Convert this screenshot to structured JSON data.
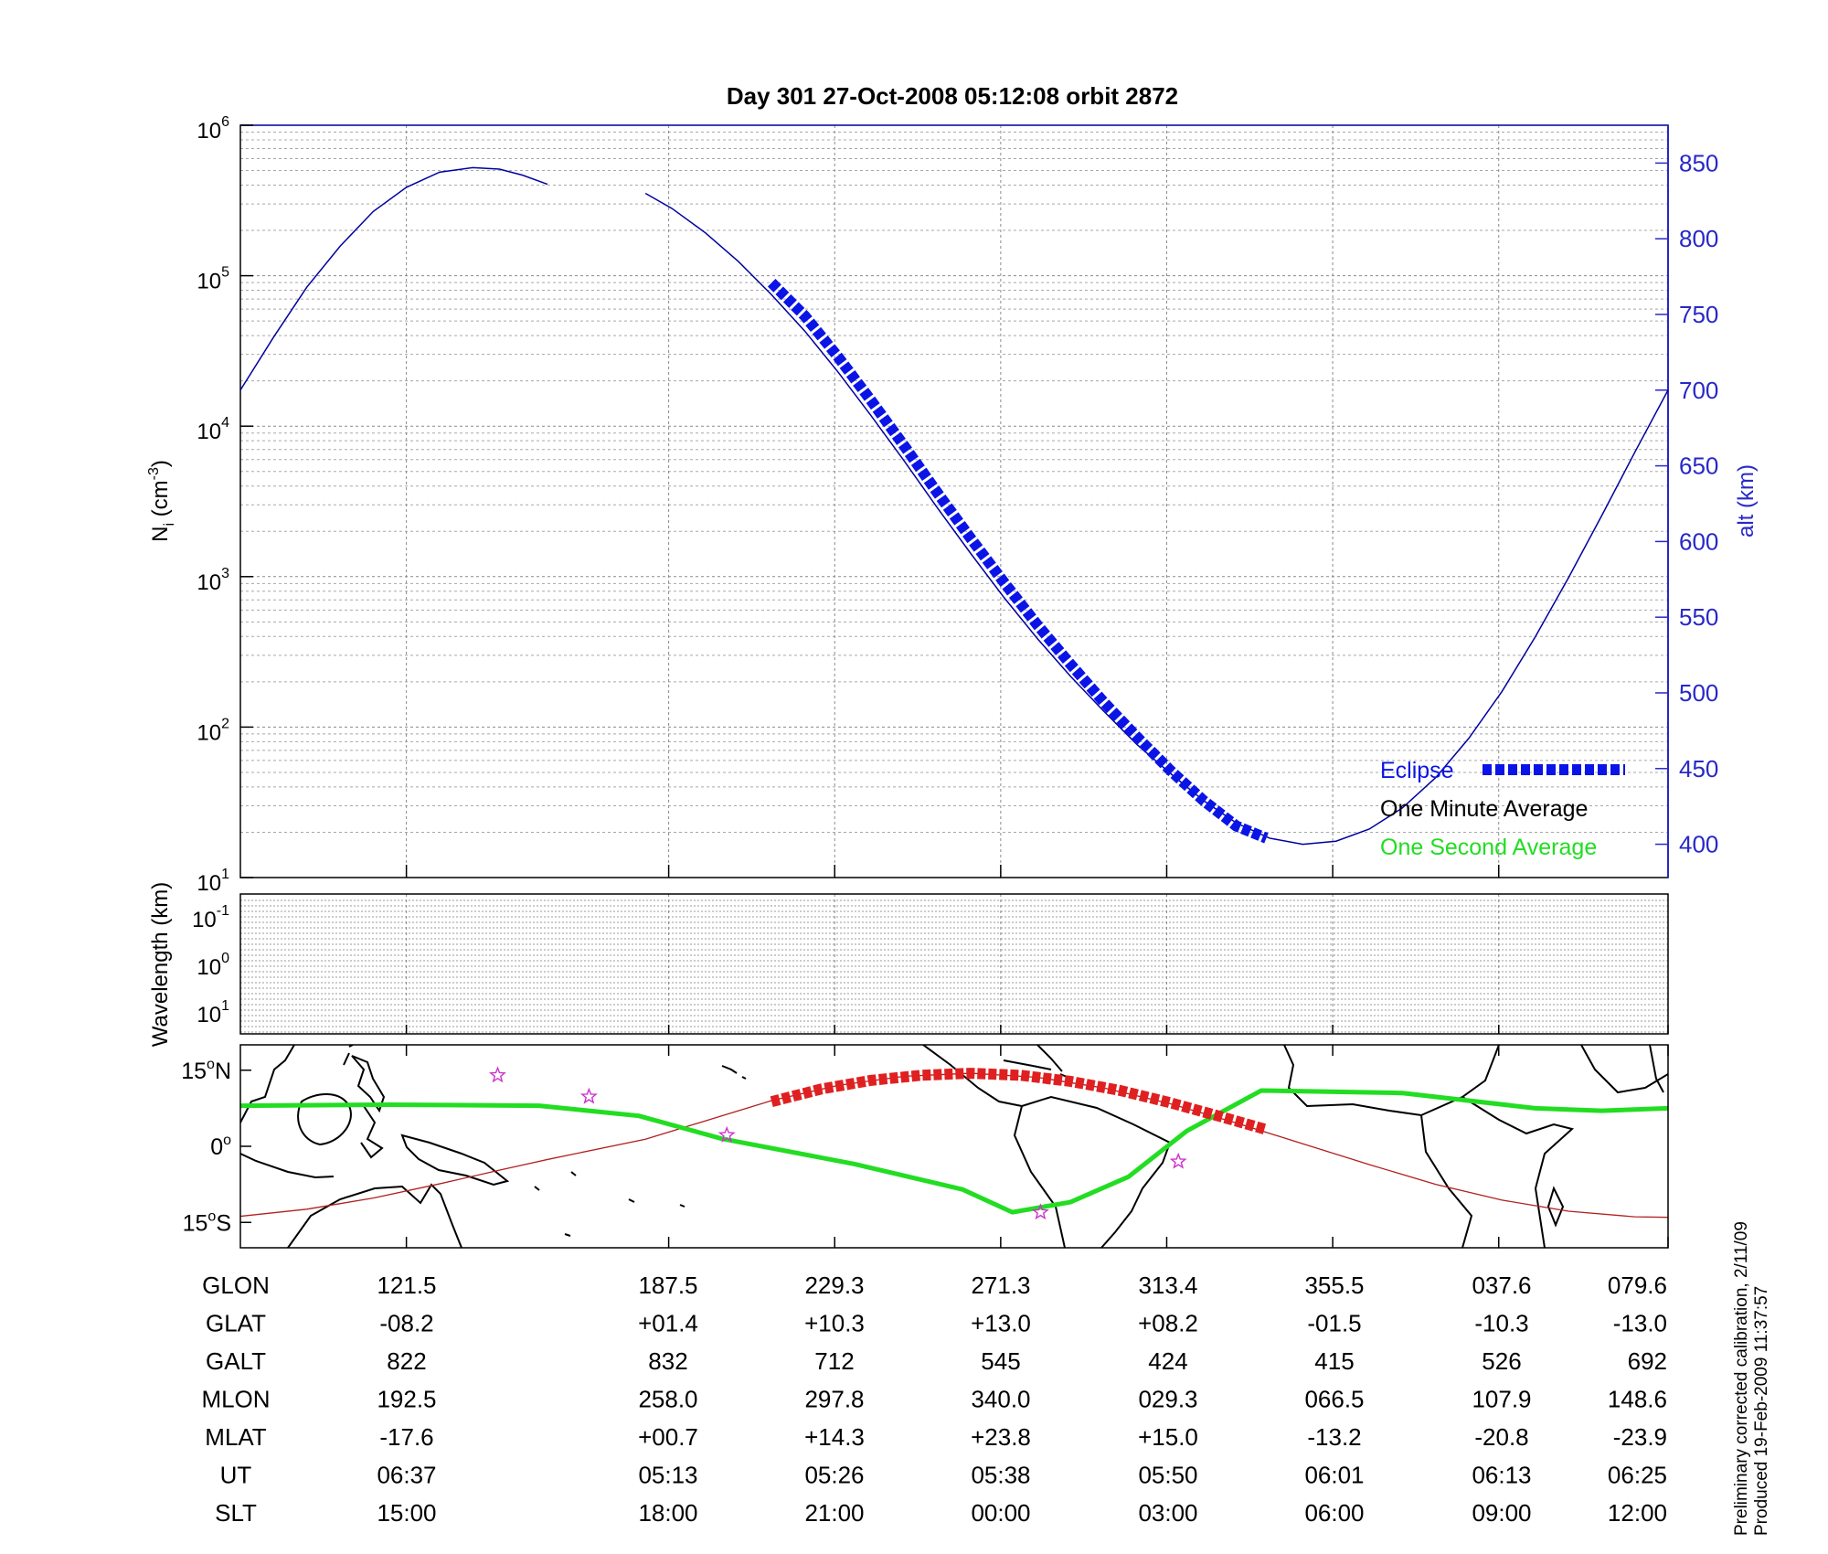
{
  "title": "Day 301  27-Oct-2008 05:12:08   orbit 2872",
  "colors": {
    "altitude": "#0000a0",
    "eclipse": "#0a14e6",
    "one_second": "#22dd22",
    "track": "#b02020",
    "track_eclipse": "#e02020",
    "alt_axis": "#2828c8",
    "stars": "#cc33cc"
  },
  "chart_data": [
    {
      "type": "line",
      "panel": "density",
      "ylabel": "N_i (cm^-3)",
      "ylabel_main": "N",
      "ylabel_sub": "i",
      "ylabel_unit": " (cm",
      "ylabel_exp": "-3",
      "ylabel_close": ")",
      "y_scale": "log",
      "ylim": [
        10,
        1000000
      ],
      "y_ticks": [
        {
          "base": "10",
          "exp": "6",
          "value": 1000000
        },
        {
          "base": "10",
          "exp": "5",
          "value": 100000
        },
        {
          "base": "10",
          "exp": "4",
          "value": 10000
        },
        {
          "base": "10",
          "exp": "3",
          "value": 1000
        },
        {
          "base": "10",
          "exp": "2",
          "value": 100
        },
        {
          "base": "10",
          "exp": "1",
          "value": 10
        }
      ],
      "y2label": "alt (km)",
      "y2lim": [
        378,
        875
      ],
      "y2_ticks": [
        "850",
        "800",
        "750",
        "700",
        "650",
        "600",
        "550",
        "500",
        "450",
        "400"
      ],
      "x_unit": "minutes after 06:37 (UT 06:37 to 06:25 next pass)",
      "xlim": [
        0,
        86
      ],
      "grid": true,
      "legend_position": "bottom-right",
      "legend": [
        {
          "label": "Eclipse",
          "color": "#0a14e6"
        },
        {
          "label": "One Minute Average",
          "color": "#000000"
        },
        {
          "label": "One Second Average",
          "color": "#22dd22"
        }
      ],
      "series": [
        {
          "name": "alt (km)",
          "axis": "right",
          "segments": [
            {
              "x": [
                0,
                2,
                4,
                6,
                8,
                10,
                12,
                14,
                15.6,
                17,
                18.5
              ],
              "y": [
                700,
                735,
                768,
                795,
                818,
                834,
                844,
                847,
                846,
                842,
                836
              ]
            },
            {
              "x": [
                24.4,
                26,
                28,
                30,
                32,
                34,
                36,
                38,
                40,
                42,
                44,
                46,
                48,
                50,
                52,
                54,
                56,
                58,
                60,
                62,
                64,
                66,
                68,
                70,
                72,
                74,
                76,
                78,
                80,
                82,
                84,
                86
              ],
              "y": [
                830,
                820,
                804,
                785,
                763,
                739,
                712,
                683,
                653,
                622,
                592,
                563,
                536,
                511,
                488,
                466,
                447,
                429,
                414,
                404,
                400,
                402,
                410,
                424,
                444,
                470,
                501,
                537,
                576,
                617,
                659,
                700
              ]
            }
          ]
        },
        {
          "name": "Eclipse",
          "axis": "right",
          "x": [
            32,
            34,
            36,
            38,
            40,
            42,
            44,
            46,
            48,
            50,
            52,
            54,
            56,
            58,
            60,
            61.8
          ],
          "y": [
            771,
            749,
            722,
            693,
            663,
            632,
            602,
            573,
            545,
            519,
            494,
            471,
            449,
            429,
            412,
            404
          ]
        }
      ],
      "x_tick_minutes": [
        10,
        25.8,
        35.8,
        45.8,
        55.8,
        65.8,
        75.8,
        86
      ]
    },
    {
      "type": "heatmap",
      "panel": "wavelength",
      "ylabel": "Wavelength (km)",
      "y_ticks": [
        {
          "base": "10",
          "exp": "-1"
        },
        {
          "base": "10",
          "exp": "0"
        },
        {
          "base": "10",
          "exp": "1"
        }
      ],
      "grid": true
    },
    {
      "type": "line",
      "panel": "map",
      "xlabel": "",
      "ylim": [
        -20,
        20
      ],
      "y_ticks": [
        {
          "label": "15",
          "deg": "o",
          "hemi": "N",
          "lat": 15
        },
        {
          "label": "0",
          "deg": "o",
          "hemi": "",
          "lat": 0
        },
        {
          "label": "15",
          "deg": "o",
          "hemi": "S",
          "lat": -15
        }
      ],
      "series": [
        {
          "name": "ground track",
          "x": [
            0,
            4,
            8,
            12,
            15.6,
            18.5,
            24.4,
            28,
            32,
            36,
            40,
            44,
            48,
            52,
            56,
            60,
            64,
            68,
            72,
            76,
            80,
            84,
            86
          ],
          "y": [
            -13.8,
            -12.4,
            -10.2,
            -7.4,
            -4.7,
            -2.6,
            1.4,
            5,
            9,
            12,
            13.8,
            14.4,
            13.6,
            11.5,
            8.4,
            4.6,
            0.5,
            -3.6,
            -7.5,
            -10.6,
            -12.8,
            -13.9,
            -14
          ]
        },
        {
          "name": "ground track (eclipse)",
          "x": [
            32,
            35,
            38,
            41,
            44,
            47,
            50,
            53,
            56,
            59,
            61.8
          ],
          "y": [
            8.8,
            11.3,
            13,
            14,
            14.4,
            14,
            12.8,
            11,
            8.6,
            5.9,
            3.3
          ]
        },
        {
          "name": "magnetic equator",
          "x": [
            0,
            9,
            18,
            24,
            29,
            37,
            43.5,
            46.5,
            50,
            53.5,
            57,
            61.5,
            70,
            78,
            82,
            86
          ],
          "y": [
            8,
            8.2,
            8,
            6,
            1.5,
            -3.5,
            -8.5,
            -13,
            -11,
            -6,
            3,
            11,
            10.5,
            7.5,
            7,
            7.5
          ]
        }
      ],
      "stars": [
        {
          "x": 15.5,
          "y": 14
        },
        {
          "x": 21,
          "y": 9.8
        },
        {
          "x": 29.3,
          "y": 2.2
        },
        {
          "x": 48.2,
          "y": -13
        },
        {
          "x": 56.5,
          "y": -3
        }
      ]
    }
  ],
  "table": {
    "rows": [
      {
        "label": "GLON",
        "values": [
          "121.5",
          "187.5",
          "229.3",
          "271.3",
          "313.4",
          "355.5",
          "037.6",
          "079.6"
        ]
      },
      {
        "label": "GLAT",
        "values": [
          "-08.2",
          "+01.4",
          "+10.3",
          "+13.0",
          "+08.2",
          "-01.5",
          "-10.3",
          "-13.0"
        ]
      },
      {
        "label": "GALT",
        "values": [
          "822",
          "832",
          "712",
          "545",
          "424",
          "415",
          "526",
          "692"
        ]
      },
      {
        "label": "MLON",
        "values": [
          "192.5",
          "258.0",
          "297.8",
          "340.0",
          "029.3",
          "066.5",
          "107.9",
          "148.6"
        ]
      },
      {
        "label": "MLAT",
        "values": [
          "-17.6",
          "+00.7",
          "+14.3",
          "+23.8",
          "+15.0",
          "-13.2",
          "-20.8",
          "-23.9"
        ]
      },
      {
        "label": "UT",
        "values": [
          "06:37",
          "05:13",
          "05:26",
          "05:38",
          "05:50",
          "06:01",
          "06:13",
          "06:25"
        ]
      },
      {
        "label": "SLT",
        "values": [
          "15:00",
          "18:00",
          "21:00",
          "00:00",
          "03:00",
          "06:00",
          "09:00",
          "12:00"
        ]
      }
    ]
  },
  "footer": {
    "line1": "Preliminary corrected calibration, 2/11/09",
    "line2": "Produced 19-Feb-2009 11:37:57"
  }
}
